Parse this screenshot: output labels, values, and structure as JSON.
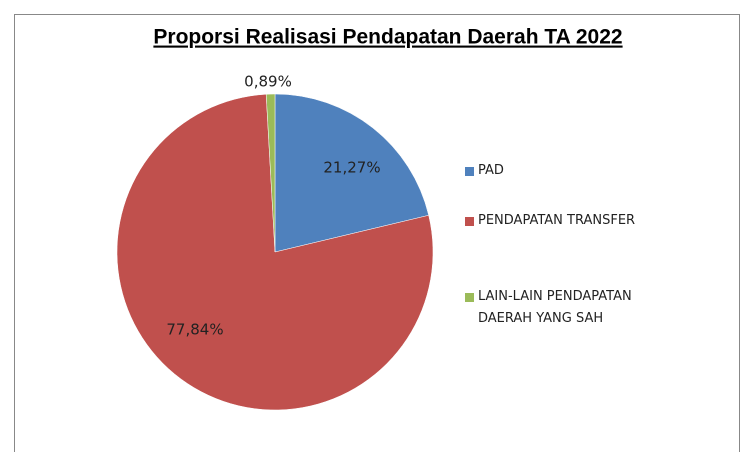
{
  "chart_data": {
    "type": "pie",
    "title": "Proporsi Realisasi Pendapatan Daerah TA 2022",
    "categories": [
      "PAD",
      "PENDAPATAN TRANSFER",
      "LAIN-LAIN PENDAPATAN DAERAH YANG SAH"
    ],
    "values": [
      21.27,
      77.84,
      0.89
    ],
    "value_labels": [
      "21,27%",
      "77,84%",
      "0,89%"
    ],
    "colors": [
      "#4f81bd",
      "#c0504d",
      "#9bbb59"
    ],
    "legend": "right"
  }
}
